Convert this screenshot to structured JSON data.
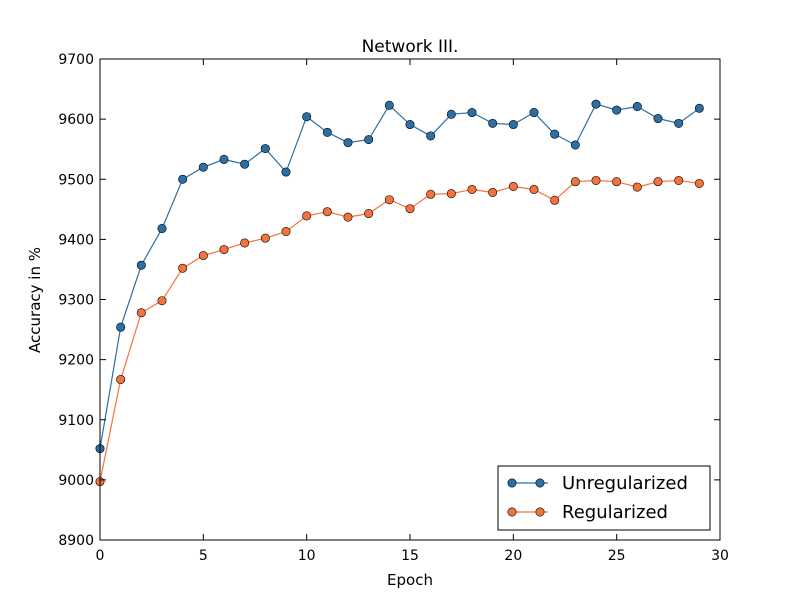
{
  "chart_data": {
    "type": "line",
    "title": "Network III.",
    "xlabel": "Epoch",
    "ylabel": "Accuracy in %",
    "xlim": [
      0,
      30
    ],
    "ylim": [
      8900,
      9700
    ],
    "x_ticks": [
      0,
      5,
      10,
      15,
      20,
      25,
      30
    ],
    "y_ticks": [
      8900,
      9000,
      9100,
      9200,
      9300,
      9400,
      9500,
      9600,
      9700
    ],
    "grid": false,
    "legend_position": "lower-right",
    "x": [
      0,
      1,
      2,
      3,
      4,
      5,
      6,
      7,
      8,
      9,
      10,
      11,
      12,
      13,
      14,
      15,
      16,
      17,
      18,
      19,
      20,
      21,
      22,
      23,
      24,
      25,
      26,
      27,
      28,
      29
    ],
    "series": [
      {
        "name": "Unregularized",
        "color": "#2C6FA6",
        "marker": "circle",
        "values": [
          9052,
          9254,
          9357,
          9418,
          9500,
          9520,
          9533,
          9525,
          9551,
          9512,
          9604,
          9578,
          9561,
          9566,
          9623,
          9591,
          9572,
          9608,
          9611,
          9593,
          9591,
          9611,
          9575,
          9557,
          9625,
          9615,
          9621,
          9601,
          9593,
          9618
        ]
      },
      {
        "name": "Regularized",
        "color": "#F4733B",
        "marker": "circle",
        "values": [
          8997,
          9167,
          9278,
          9298,
          9352,
          9373,
          9383,
          9394,
          9402,
          9413,
          9439,
          9446,
          9437,
          9443,
          9466,
          9451,
          9475,
          9476,
          9483,
          9478,
          9488,
          9483,
          9465,
          9496,
          9498,
          9496,
          9487,
          9496,
          9498,
          9493
        ]
      }
    ]
  }
}
